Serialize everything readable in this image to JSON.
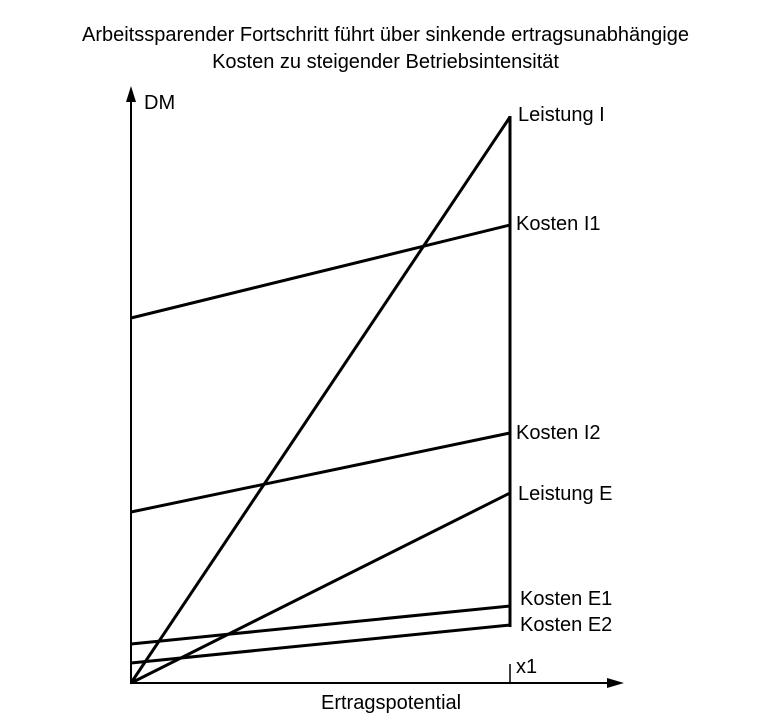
{
  "title": {
    "line1": "Arbeitssparender Fortschritt führt über sinkende ertragsunabhängige",
    "line2": "Kosten zu steigender Betriebsintensität"
  },
  "axes": {
    "y_label": "DM",
    "x_label": "Ertragspotential",
    "x_marker": "x1"
  },
  "curves": {
    "leistung_i": "Leistung I",
    "kosten_i1": "Kosten I1",
    "kosten_i2": "Kosten I2",
    "leistung_e": "Leistung E",
    "kosten_e1": "Kosten E1",
    "kosten_e2": "Kosten E2"
  },
  "colors": {
    "line": "#000000",
    "background": "#ffffff"
  }
}
